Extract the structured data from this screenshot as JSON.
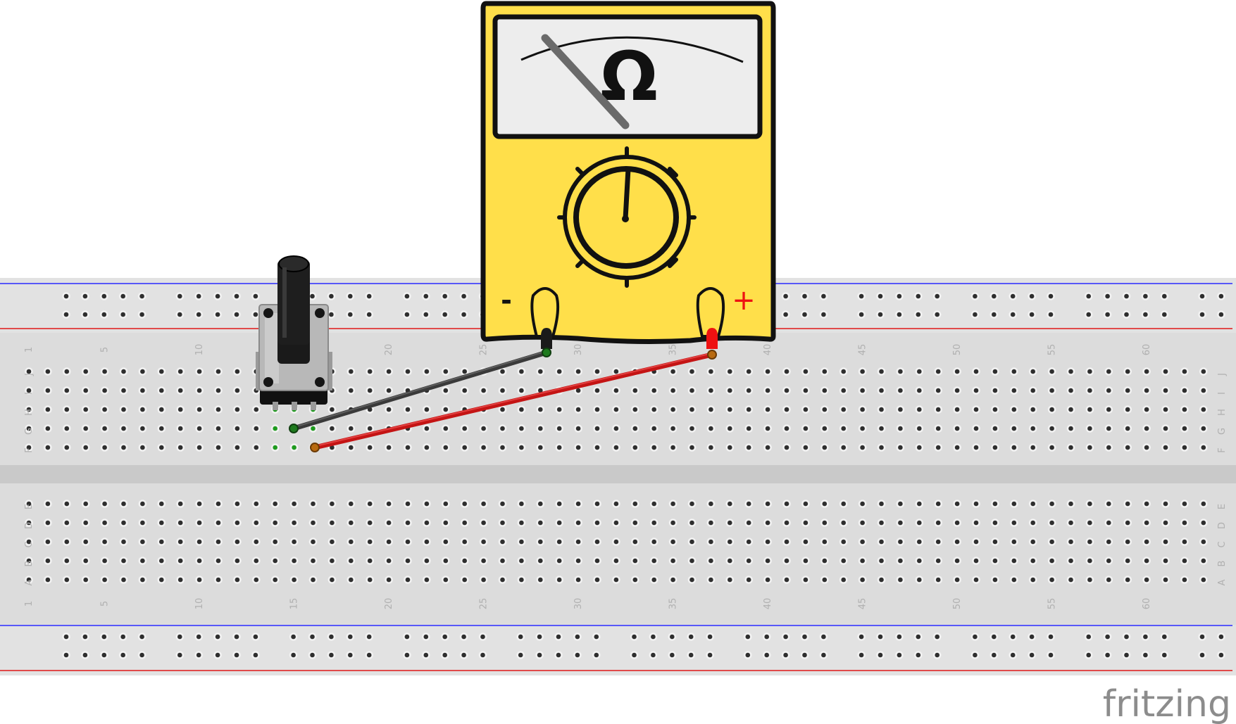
{
  "colors": {
    "board": "#dcdcdc",
    "board_trench": "#c9c9c9",
    "rail_blue": "#2a2aff",
    "rail_red": "#e01818",
    "hole": "#2e2e2e",
    "hole_connected": "#1e9a1e",
    "meter_body": "#ffdf4a",
    "meter_face": "#ededed",
    "probe_black": "#1a1a1a",
    "probe_red": "#ee1111",
    "wire_black": "#3a3a3a",
    "wire_red": "#c41414",
    "label_grey": "#b0b0b0"
  },
  "breadboard": {
    "columns": 63,
    "top_rows": [
      "J",
      "I",
      "H",
      "G",
      "F"
    ],
    "bottom_rows": [
      "E",
      "D",
      "C",
      "B",
      "A"
    ],
    "column_labels": [
      "1",
      "5",
      "10",
      "15",
      "20",
      "25",
      "30",
      "35",
      "40",
      "45",
      "50",
      "55",
      "60"
    ],
    "rail_groups": 12
  },
  "multimeter": {
    "unit_symbol": "Ω",
    "negative_label": "-",
    "positive_label": "+"
  },
  "potentiometer": {
    "pins": 3,
    "icon": "rotary-potentiometer-icon"
  },
  "watermark": {
    "text": "fritzing"
  }
}
